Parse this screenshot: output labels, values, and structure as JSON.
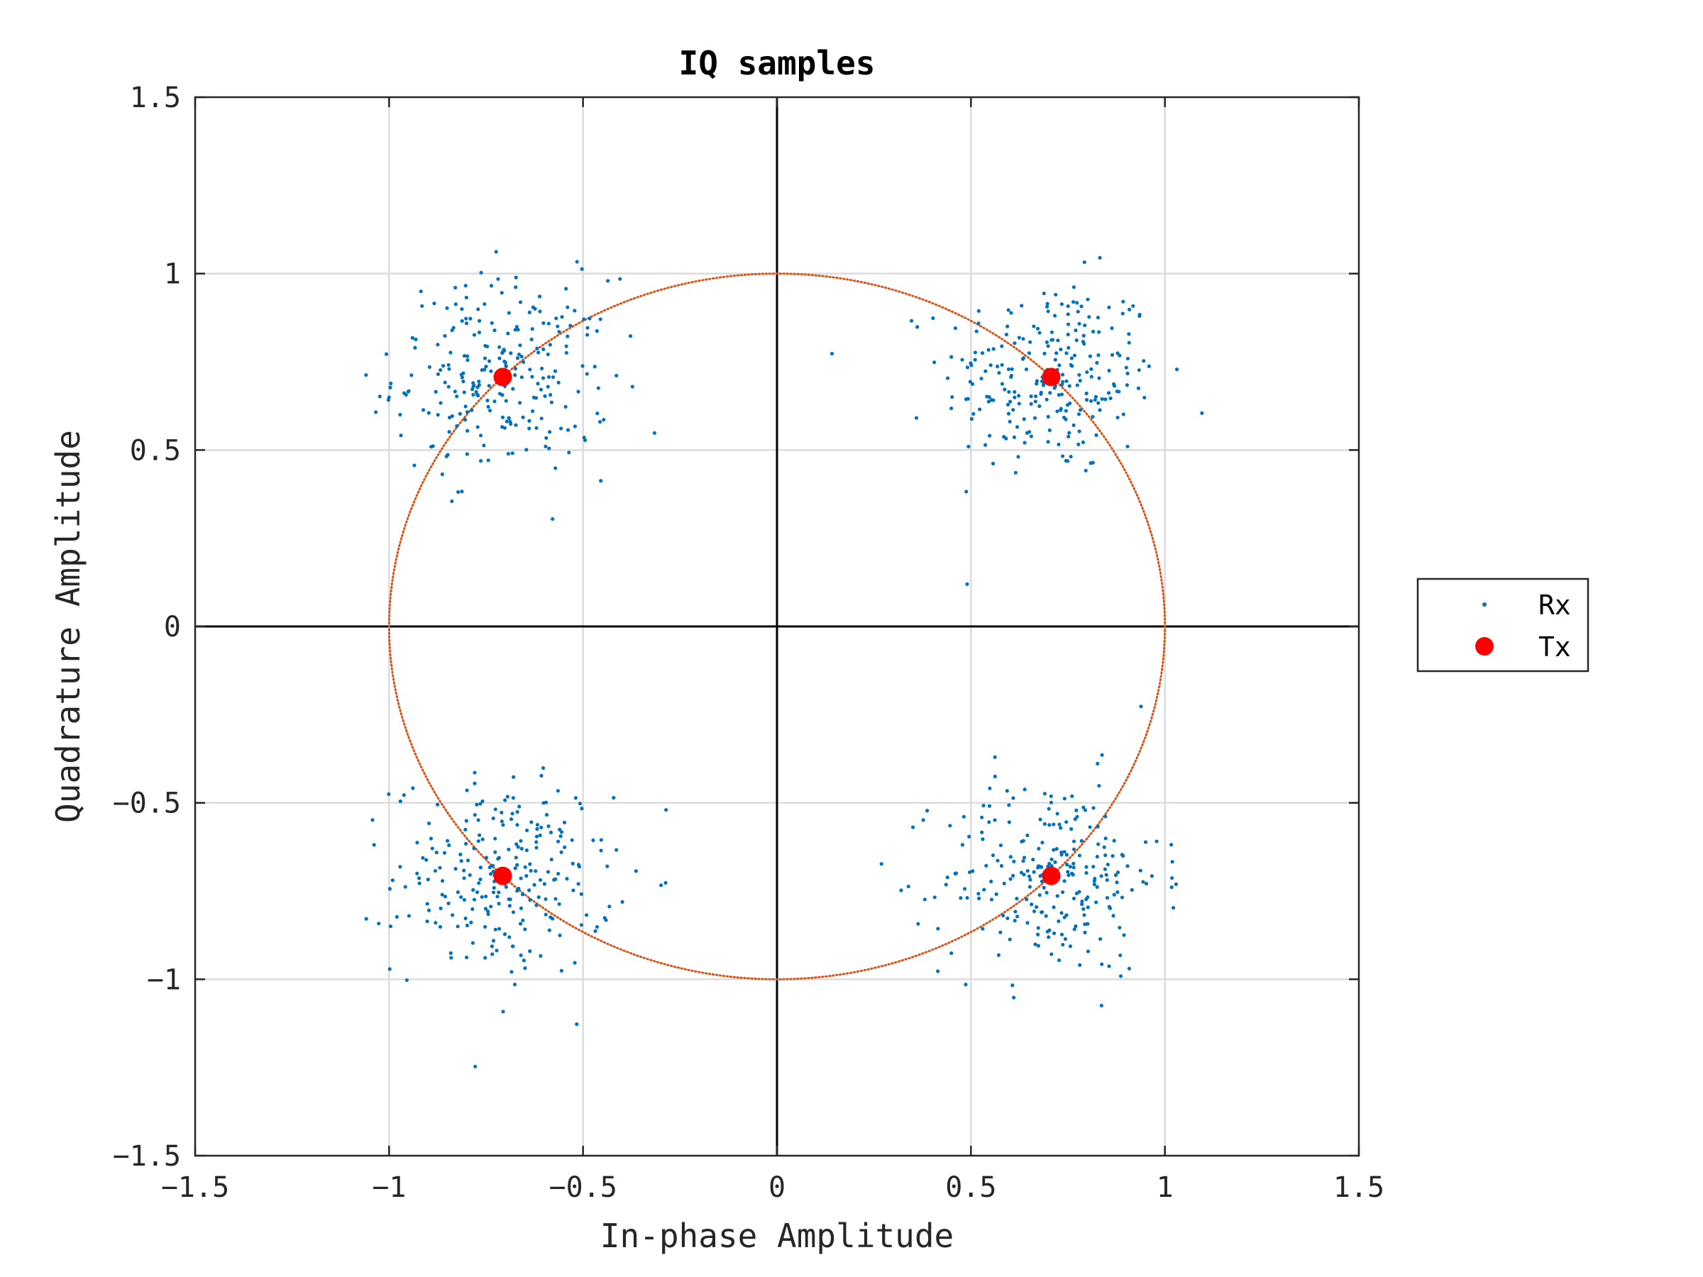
{
  "chart_data": {
    "type": "scatter",
    "title": "IQ samples",
    "xlabel": "In-phase Amplitude",
    "ylabel": "Quadrature Amplitude",
    "xlim": [
      -1.5,
      1.5
    ],
    "ylim": [
      -1.5,
      1.5
    ],
    "xticks": [
      -1.5,
      -1,
      -0.5,
      0,
      0.5,
      1,
      1.5
    ],
    "yticks": [
      -1.5,
      -1,
      -0.5,
      0,
      0.5,
      1,
      1.5
    ],
    "xtick_labels": [
      "−1.5",
      "−1",
      "−0.5",
      "0",
      "0.5",
      "1",
      "1.5"
    ],
    "ytick_labels": [
      "−1.5",
      "−1",
      "−0.5",
      "0",
      "0.5",
      "1",
      "1.5"
    ],
    "grid": true,
    "legend_position": "outside-right",
    "unit_circle": {
      "radius": 1,
      "color": "#D95319",
      "style": "dotted"
    },
    "series": [
      {
        "name": "Rx",
        "marker": "dot",
        "color": "#0072BD",
        "cluster_centers": [
          [
            0.707,
            0.707
          ],
          [
            -0.707,
            0.707
          ],
          [
            -0.707,
            -0.707
          ],
          [
            0.707,
            -0.707
          ]
        ],
        "cluster_spread": 0.14,
        "points_per_cluster": 250
      },
      {
        "name": "Tx",
        "marker": "filled-circle",
        "color": "#FF0000",
        "points": [
          [
            0.707,
            0.707
          ],
          [
            -0.707,
            0.707
          ],
          [
            -0.707,
            -0.707
          ],
          [
            0.707,
            -0.707
          ]
        ]
      }
    ]
  }
}
